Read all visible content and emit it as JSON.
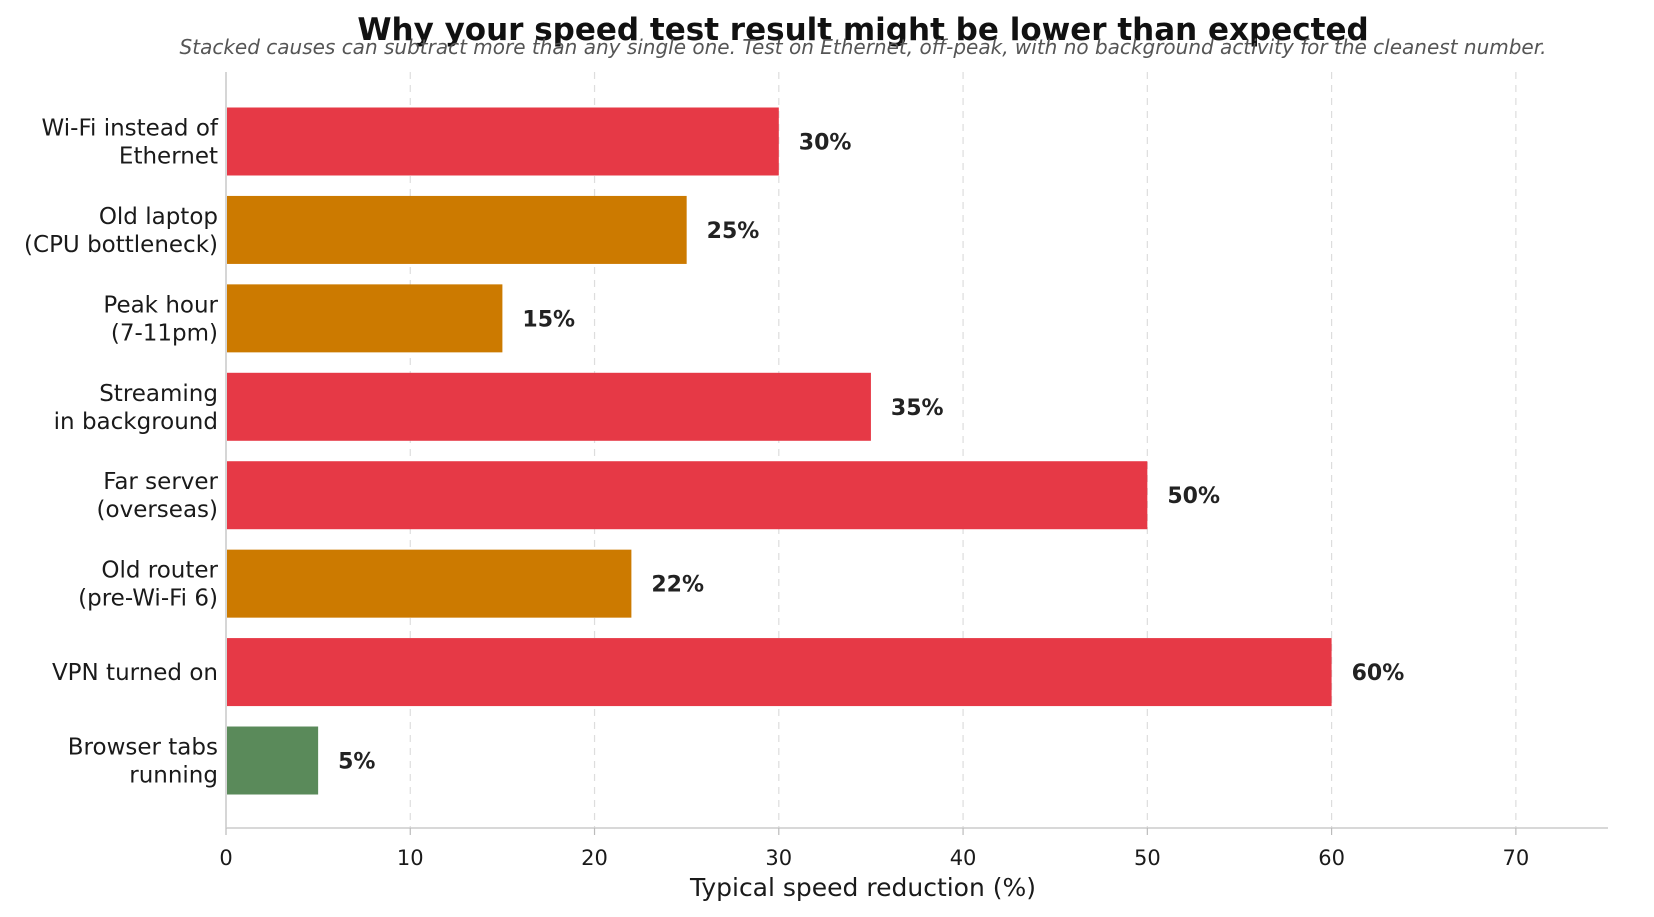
{
  "chart_data": {
    "type": "bar",
    "orientation": "horizontal",
    "title": "Why your speed test result might be lower than expected",
    "subtitle": "Stacked causes can subtract more than any single one. Test on Ethernet, off-peak, with no background activity for the cleanest number.",
    "xlabel": "Typical speed reduction (%)",
    "ylabel": "",
    "xlim": [
      0,
      75
    ],
    "xticks": [
      0,
      10,
      20,
      30,
      40,
      50,
      60,
      70
    ],
    "grid": "vertical-dashed",
    "categories": [
      [
        "Wi-Fi instead of",
        "Ethernet"
      ],
      [
        "Old laptop",
        "(CPU bottleneck)"
      ],
      [
        "Peak hour",
        "(7-11pm)"
      ],
      [
        "Streaming",
        "in background"
      ],
      [
        "Far server",
        "(overseas)"
      ],
      [
        "Old router",
        "(pre-Wi-Fi 6)"
      ],
      [
        "VPN turned on"
      ],
      [
        "Browser tabs",
        "running"
      ]
    ],
    "values": [
      30,
      25,
      15,
      35,
      50,
      22,
      60,
      5
    ],
    "value_labels": [
      "30%",
      "25%",
      "15%",
      "35%",
      "50%",
      "22%",
      "60%",
      "5%"
    ],
    "bar_colors": [
      "#e63946",
      "#cc7a00",
      "#cc7a00",
      "#e63946",
      "#e63946",
      "#cc7a00",
      "#e63946",
      "#5a8a5a"
    ]
  }
}
